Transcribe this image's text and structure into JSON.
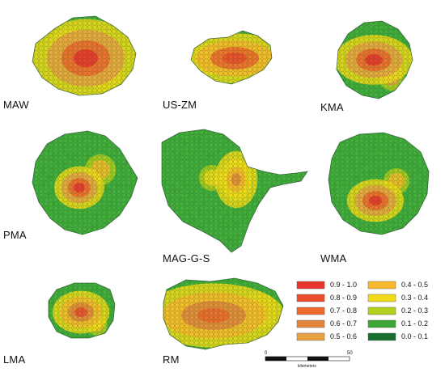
{
  "regions": [
    {
      "id": "maw",
      "label": "MAW",
      "core_intensity": 0.95,
      "secondary_intensity": 0.6
    },
    {
      "id": "us-zm",
      "label": "US-ZM",
      "core_intensity": 0.85,
      "secondary_intensity": 0.55
    },
    {
      "id": "kma",
      "label": "KMA",
      "core_intensity": 0.9,
      "secondary_intensity": 0.5
    },
    {
      "id": "pma",
      "label": "PMA",
      "core_intensity": 0.9,
      "secondary_intensity": 0.4
    },
    {
      "id": "mag-g-s",
      "label": "MAG-G-S",
      "core_intensity": 0.6,
      "secondary_intensity": 0.35
    },
    {
      "id": "wma",
      "label": "WMA",
      "core_intensity": 0.95,
      "secondary_intensity": 0.45
    },
    {
      "id": "lma",
      "label": "LMA",
      "core_intensity": 0.8,
      "secondary_intensity": 0.45
    },
    {
      "id": "rm",
      "label": "RM",
      "core_intensity": 0.75,
      "secondary_intensity": 0.6
    }
  ],
  "legend": [
    {
      "label": "0.9  -  1.0",
      "color": "#e8362d"
    },
    {
      "label": "0.8  -  0.9",
      "color": "#ea4d2c"
    },
    {
      "label": "0.7  -  0.8",
      "color": "#ec6a2d"
    },
    {
      "label": "0.6  -  0.7",
      "color": "#e0873d"
    },
    {
      "label": "0.5  -  0.6",
      "color": "#e8a244"
    },
    {
      "label": "0.4  -  0.5",
      "color": "#f6b92d"
    },
    {
      "label": "0.3  -  0.4",
      "color": "#f2dc1a"
    },
    {
      "label": "0.2  -  0.3",
      "color": "#b4cf1e"
    },
    {
      "label": "0.1  -  0.2",
      "color": "#3ea534"
    },
    {
      "label": "0.0  -  0.1",
      "color": "#17702f"
    }
  ],
  "scale_bar": {
    "start": "0",
    "end": "50",
    "unit": "kilometers"
  }
}
